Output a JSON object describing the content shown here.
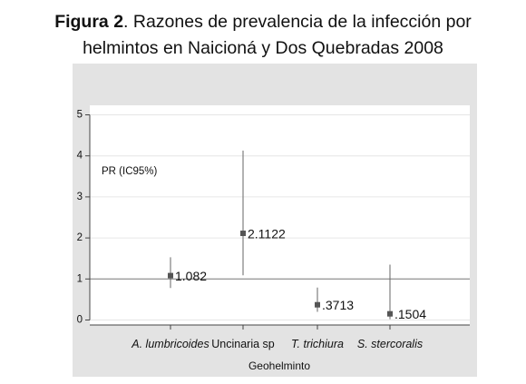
{
  "title": {
    "prefix": "Figura 2",
    "rest": ". Razones de prevalencia de la infección por",
    "line2": "helmintos en Naicioná y Dos Quebradas 2008"
  },
  "colors": {
    "outer_bg": "#e3e3e3",
    "plot_bg": "#ffffff",
    "grid": "#e6e6e6",
    "axis": "#444444",
    "marker": "#555555",
    "ci_line": "#666666",
    "ref_line": "#777777"
  },
  "chart_data": {
    "type": "scatter",
    "subtype": "point-with-confidence-interval",
    "categories": [
      "A. lumbricoides",
      "Uncinaria sp",
      "T. trichiura",
      "S. stercoralis"
    ],
    "italic_categories": [
      true,
      false,
      true,
      true
    ],
    "values": [
      1.082,
      2.1122,
      0.3713,
      0.1504
    ],
    "value_labels": [
      "1.082",
      "2.1122",
      ".3713",
      ".1504"
    ],
    "ci_low": [
      0.78,
      1.09,
      0.2,
      0.02
    ],
    "ci_high": [
      1.53,
      4.13,
      0.79,
      1.35
    ],
    "reference_line": 1,
    "annotation": "PR (IC95%)",
    "xlabel": "Geohelminto",
    "ylabel": "",
    "ylim": [
      0,
      5
    ],
    "yticks": [
      0,
      1,
      2,
      3,
      4,
      5
    ],
    "grid": true
  }
}
